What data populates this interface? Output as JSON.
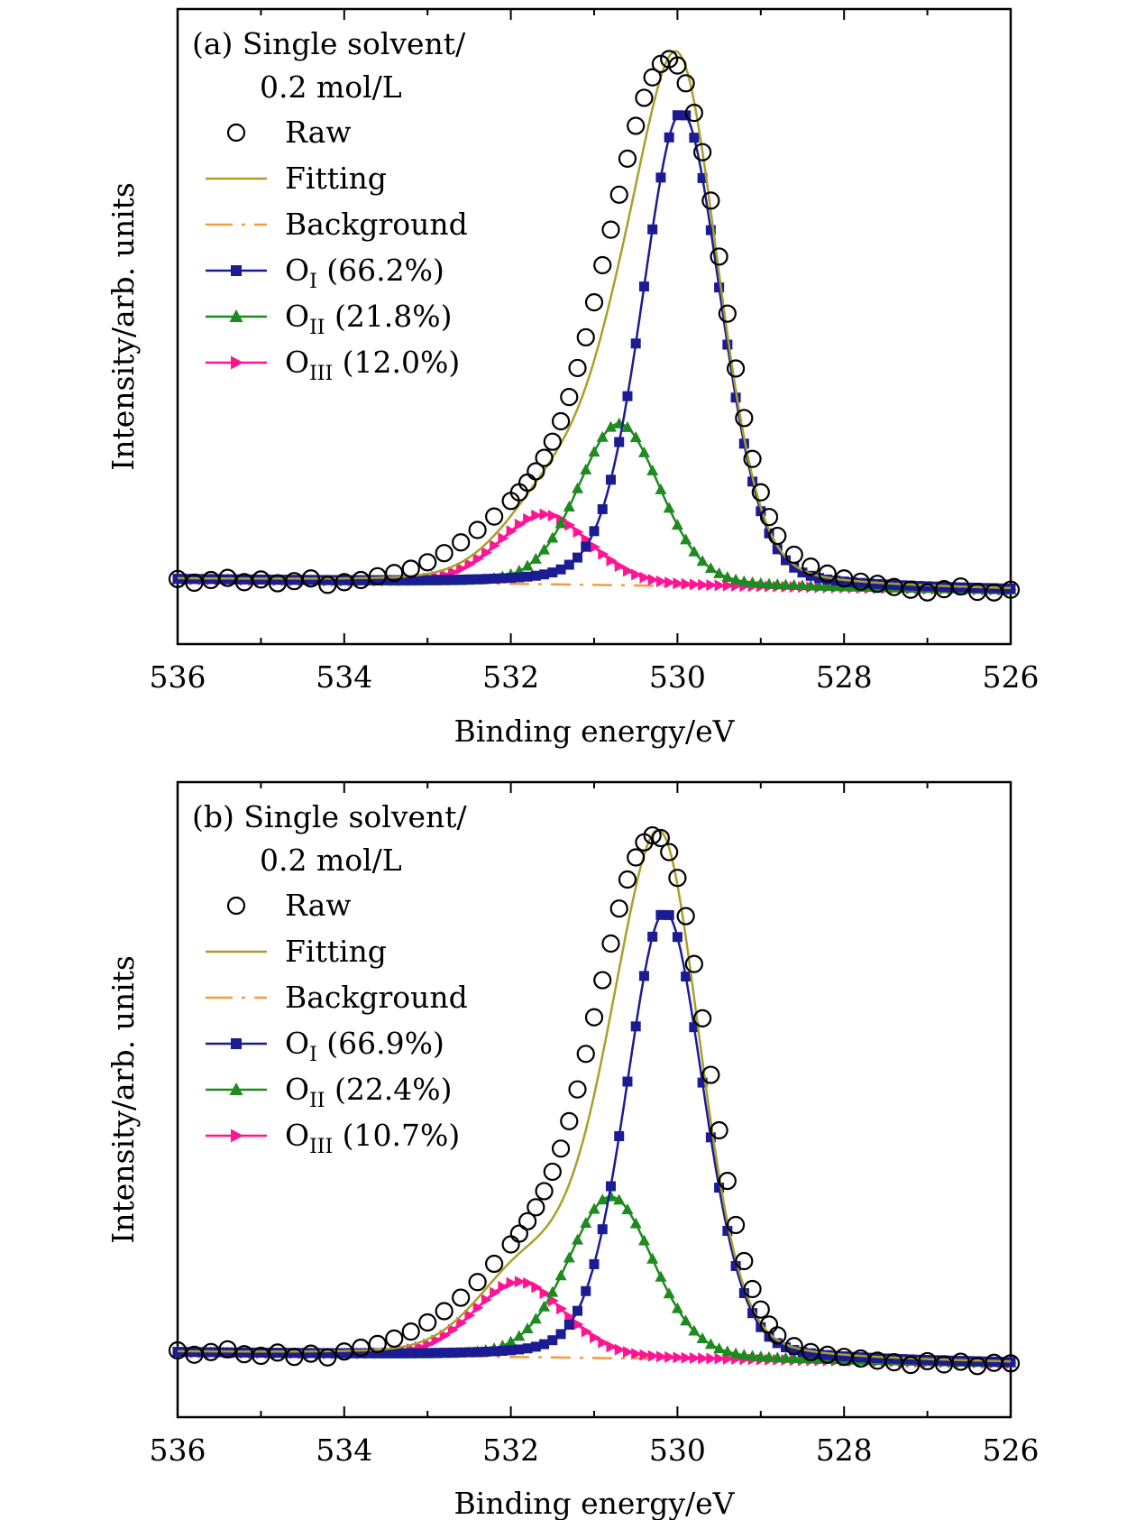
{
  "figure_labels": {
    "ylabel": "Intensity/arb. units",
    "xlabel": "Binding energy/eV"
  },
  "colors": {
    "raw": "#000000",
    "fitting": "#a8a02a",
    "background": "#f39c3b",
    "o1": "#1b1b93",
    "o2": "#1f8a1f",
    "o3": "#ff1493"
  },
  "chart_data": [
    {
      "type": "scatter",
      "panel": "(a)",
      "title": "(a) Single solvent/",
      "title_line2": "0.2 mol/L",
      "xlabel": "Binding energy/eV",
      "ylabel": "Intensity/arb. units",
      "xlim": [
        536,
        526
      ],
      "ylim": [
        -10,
        108
      ],
      "x_ticks": [
        "536",
        "534",
        "532",
        "530",
        "528",
        "526"
      ],
      "legend": [
        {
          "key": "raw",
          "label": "Raw"
        },
        {
          "key": "fitting",
          "label": "Fitting"
        },
        {
          "key": "background",
          "label": "Background"
        },
        {
          "key": "o1",
          "label_main": "O",
          "label_sub": "I",
          "label_rest": " (66.2%)"
        },
        {
          "key": "o2",
          "label_main": "O",
          "label_sub": "II",
          "label_rest": " (21.8%)"
        },
        {
          "key": "o3",
          "label_main": "O",
          "label_sub": "III",
          "label_rest": " (12.0%)"
        }
      ],
      "background": {
        "x": [
          536,
          526
        ],
        "y": [
          2,
          0
        ]
      },
      "components": [
        {
          "key": "o1",
          "center": 529.95,
          "amplitude": 88,
          "width": 0.48
        },
        {
          "key": "o2",
          "center": 530.7,
          "amplitude": 30,
          "width": 0.5
        },
        {
          "key": "o3",
          "center": 531.6,
          "amplitude": 13,
          "width": 0.55
        }
      ],
      "raw_points": {
        "x": [
          536.0,
          535.8,
          535.6,
          535.4,
          535.2,
          535.0,
          534.8,
          534.6,
          534.4,
          534.2,
          534.0,
          533.8,
          533.6,
          533.4,
          533.2,
          533.0,
          532.8,
          532.6,
          532.4,
          532.2,
          532.0,
          531.9,
          531.8,
          531.7,
          531.6,
          531.5,
          531.4,
          531.3,
          531.2,
          531.1,
          531.0,
          530.9,
          530.8,
          530.7,
          530.6,
          530.5,
          530.4,
          530.3,
          530.2,
          530.1,
          530.0,
          529.9,
          529.8,
          529.7,
          529.6,
          529.5,
          529.4,
          529.3,
          529.2,
          529.1,
          529.0,
          528.9,
          528.8,
          528.6,
          528.4,
          528.2,
          528.0,
          527.8,
          527.6,
          527.4,
          527.2,
          527.0,
          526.8,
          526.6,
          526.4,
          526.2,
          526.0
        ],
        "y": [
          2.1,
          1.4,
          1.9,
          2.3,
          1.5,
          2.0,
          1.3,
          1.7,
          2.2,
          1.0,
          1.5,
          1.9,
          2.6,
          3.2,
          4.0,
          5.2,
          6.9,
          8.9,
          11.2,
          13.7,
          16.6,
          18.2,
          20.0,
          22.1,
          24.6,
          27.6,
          31.4,
          35.9,
          41.3,
          47.0,
          53.5,
          60.4,
          67.0,
          73.5,
          80.2,
          86.3,
          91.5,
          95.3,
          97.8,
          98.7,
          97.5,
          94.2,
          88.7,
          81.4,
          72.4,
          62.0,
          51.4,
          41.2,
          32.0,
          24.4,
          18.2,
          13.6,
          10.1,
          6.6,
          4.4,
          3.1,
          2.2,
          1.6,
          1.2,
          0.6,
          0.1,
          -0.4,
          0.2,
          0.7,
          -0.3,
          -0.4,
          0.1
        ]
      }
    },
    {
      "type": "scatter",
      "panel": "(b)",
      "title": "(b) Single solvent/",
      "title_line2": "0.2 mol/L",
      "xlabel": "Binding energy/eV",
      "ylabel": "Intensity/arb. units",
      "xlim": [
        536,
        526
      ],
      "ylim": [
        -10,
        108
      ],
      "x_ticks": [
        "536",
        "534",
        "532",
        "530",
        "528",
        "526"
      ],
      "legend": [
        {
          "key": "raw",
          "label": "Raw"
        },
        {
          "key": "fitting",
          "label": "Fitting"
        },
        {
          "key": "background",
          "label": "Background"
        },
        {
          "key": "o1",
          "label_main": "O",
          "label_sub": "I",
          "label_rest": " (66.9%)"
        },
        {
          "key": "o2",
          "label_main": "O",
          "label_sub": "II",
          "label_rest": " (22.4%)"
        },
        {
          "key": "o3",
          "label_main": "O",
          "label_sub": "III",
          "label_rest": " (10.7%)"
        }
      ],
      "background": {
        "x": [
          536,
          526
        ],
        "y": [
          2,
          0
        ]
      },
      "components": [
        {
          "key": "o1",
          "center": 530.15,
          "amplitude": 83,
          "width": 0.47
        },
        {
          "key": "o2",
          "center": 530.8,
          "amplitude": 30,
          "width": 0.52
        },
        {
          "key": "o3",
          "center": 531.9,
          "amplitude": 14,
          "width": 0.55
        }
      ],
      "raw_points": {
        "x": [
          536.0,
          535.8,
          535.6,
          535.4,
          535.2,
          535.0,
          534.8,
          534.6,
          534.4,
          534.2,
          534.0,
          533.8,
          533.6,
          533.4,
          533.2,
          533.0,
          532.8,
          532.6,
          532.4,
          532.2,
          532.0,
          531.9,
          531.8,
          531.7,
          531.6,
          531.5,
          531.4,
          531.3,
          531.2,
          531.1,
          531.0,
          530.9,
          530.8,
          530.7,
          530.6,
          530.5,
          530.4,
          530.3,
          530.2,
          530.1,
          530.0,
          529.9,
          529.8,
          529.7,
          529.6,
          529.5,
          529.4,
          529.3,
          529.2,
          529.1,
          529.0,
          528.9,
          528.8,
          528.6,
          528.4,
          528.2,
          528.0,
          527.8,
          527.6,
          527.4,
          527.2,
          527.0,
          526.8,
          526.6,
          526.4,
          526.2,
          526.0
        ],
        "y": [
          2.4,
          1.6,
          2.1,
          2.6,
          1.7,
          1.4,
          2.0,
          1.2,
          1.8,
          1.1,
          2.2,
          2.9,
          3.6,
          4.6,
          5.9,
          7.6,
          9.7,
          12.2,
          15.1,
          18.5,
          22.1,
          24.1,
          26.4,
          29.0,
          32.0,
          35.6,
          39.9,
          45.0,
          50.9,
          57.5,
          64.3,
          71.2,
          78.0,
          84.5,
          89.9,
          94.0,
          96.8,
          98.1,
          97.6,
          95.0,
          90.2,
          83.1,
          74.2,
          64.1,
          53.6,
          43.3,
          33.9,
          25.7,
          19.0,
          13.8,
          10.0,
          7.2,
          5.2,
          3.2,
          2.1,
          1.6,
          1.2,
          0.9,
          0.5,
          0.2,
          -0.3,
          0.4,
          -0.2,
          0.3,
          -0.5,
          0.1,
          0.0
        ]
      }
    }
  ]
}
